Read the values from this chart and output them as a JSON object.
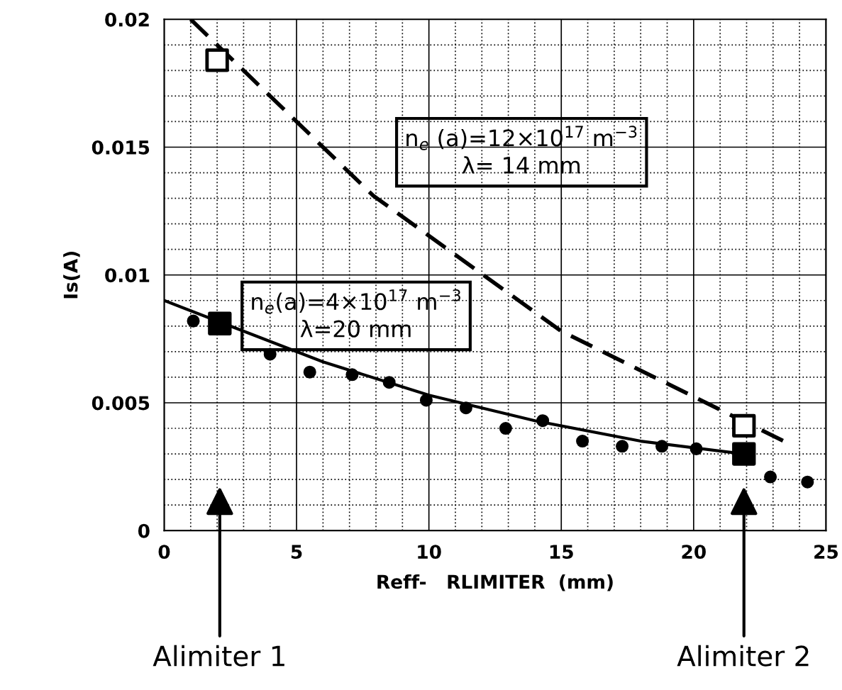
{
  "chart_data": {
    "type": "scatter",
    "xlabel": "Reff-   RLIMITER  (mm)",
    "ylabel": "Is(A)",
    "xlim": [
      0,
      25
    ],
    "ylim": [
      0,
      0.02
    ],
    "xticks": [
      0,
      5,
      10,
      15,
      20,
      25
    ],
    "yticks": [
      0,
      0.005,
      0.01,
      0.015,
      0.02
    ],
    "grid": true,
    "legend": false,
    "series": [
      {
        "marker": "circle",
        "color": "#000000",
        "x": [
          1.1,
          4.0,
          5.5,
          7.1,
          8.5,
          9.9,
          11.4,
          12.9,
          14.3,
          15.8,
          17.3,
          18.8,
          20.1,
          22.9,
          24.3
        ],
        "values": [
          0.0082,
          0.0069,
          0.0062,
          0.0061,
          0.0058,
          0.0051,
          0.0048,
          0.004,
          0.0043,
          0.0035,
          0.0033,
          0.0033,
          0.0032,
          0.0021,
          0.0019
        ]
      },
      {
        "type": "line",
        "line_style": "solid",
        "color": "#000000",
        "x": [
          0,
          3,
          6,
          10,
          14,
          18,
          21.9
        ],
        "values": [
          0.009,
          0.0078,
          0.0066,
          0.0053,
          0.0043,
          0.0035,
          0.003
        ]
      },
      {
        "type": "line",
        "line_style": "dashed",
        "color": "#000000",
        "x": [
          1.0,
          7.9,
          15.0,
          23.4
        ],
        "values": [
          0.02,
          0.0131,
          0.0078,
          0.0035
        ]
      },
      {
        "type": "scatter",
        "marker": "square",
        "color": "#000000",
        "x": [
          2.1,
          21.9
        ],
        "values": [
          0.0081,
          0.003
        ]
      },
      {
        "type": "scatter",
        "marker": "square",
        "color": "#ffffff",
        "x": [
          2.0,
          21.9
        ],
        "values": [
          0.0184,
          0.0041
        ]
      }
    ],
    "annotations": [
      "n$_{e}$ (a)=12×10$^{17}$ m$^{−3}$\nλ= 14 mm",
      "n$_{e}$(a)=4×10$^{17}$ m$^{−3}$\nλ=20 mm",
      "Alimiter 1",
      "Alimiter 2"
    ]
  }
}
